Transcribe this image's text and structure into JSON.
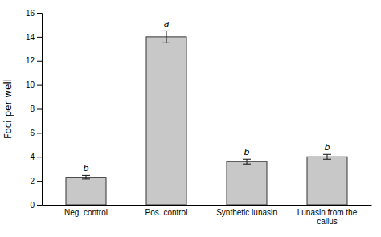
{
  "chart_data": {
    "type": "bar",
    "categories": [
      "Neg. control",
      "Pos. control",
      "Synthetic lunasin",
      "Lunasin from the\ncallus"
    ],
    "values": [
      2.3,
      14.0,
      3.6,
      4.0
    ],
    "errors": [
      0.15,
      0.5,
      0.2,
      0.2
    ],
    "annotations": [
      "b",
      "a",
      "b",
      "b"
    ],
    "color": "#c8c8c8",
    "ylabel": "Foci per well",
    "ylim": [
      0,
      16
    ],
    "yticks": [
      0,
      2,
      4,
      6,
      8,
      10,
      12,
      14,
      16
    ],
    "grid": false
  }
}
